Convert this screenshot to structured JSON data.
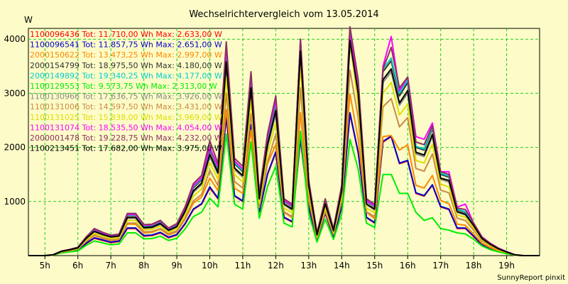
{
  "chart_data": {
    "type": "line",
    "title": "Wechselrichtervergleich vom 13.05.2014",
    "ylabel": "W",
    "xlabel": "",
    "footer": "SunnyReport pinxit",
    "ylim": [
      0,
      4200
    ],
    "xlim": [
      4.5,
      20.0
    ],
    "yticks": [
      1000,
      2000,
      3000,
      4000
    ],
    "xticks": [
      5,
      6,
      7,
      8,
      9,
      10,
      11,
      12,
      13,
      14,
      15,
      16,
      17,
      18,
      19
    ],
    "xtick_labels": [
      "5h",
      "6h",
      "7h",
      "8h",
      "9h",
      "10h",
      "11h",
      "12h",
      "13h",
      "14h",
      "15h",
      "16h",
      "17h",
      "18h",
      "19h"
    ],
    "grid": true,
    "legend_position": "top-left",
    "x": [
      4.5,
      4.75,
      5.0,
      5.25,
      5.5,
      5.75,
      6.0,
      6.25,
      6.5,
      6.75,
      7.0,
      7.25,
      7.5,
      7.75,
      8.0,
      8.25,
      8.5,
      8.75,
      9.0,
      9.25,
      9.5,
      9.75,
      10.0,
      10.25,
      10.5,
      10.75,
      11.0,
      11.25,
      11.5,
      11.75,
      12.0,
      12.25,
      12.5,
      12.75,
      13.0,
      13.25,
      13.5,
      13.75,
      14.0,
      14.25,
      14.5,
      14.75,
      15.0,
      15.25,
      15.5,
      15.75,
      16.0,
      16.25,
      16.5,
      16.75,
      17.0,
      17.25,
      17.5,
      17.75,
      18.0,
      18.25,
      18.5,
      18.75,
      19.0,
      19.25,
      19.5,
      19.75,
      20.0
    ],
    "series": [
      {
        "name": "1100096436 Tot: 11.710,00 Wh Max: 2.633,00 W",
        "color": "#ff0000",
        "values": [
          0,
          0,
          0,
          10,
          60,
          80,
          100,
          220,
          320,
          280,
          240,
          260,
          500,
          500,
          360,
          370,
          420,
          330,
          380,
          580,
          850,
          950,
          1250,
          1050,
          2550,
          1100,
          1000,
          2400,
          800,
          1500,
          1900,
          700,
          620,
          2150,
          900,
          290,
          780,
          340,
          900,
          2620,
          1900,
          700,
          600,
          2100,
          2200,
          1700,
          1750,
          1150,
          1100,
          1300,
          900,
          850,
          500,
          500,
          350,
          200,
          130,
          80,
          40,
          10,
          0,
          0,
          0
        ]
      },
      {
        "name": "1100096541 Tot: 11.857,75 Wh Max: 2.651,00 W",
        "color": "#0000cc",
        "values": [
          0,
          0,
          0,
          10,
          60,
          80,
          100,
          230,
          330,
          290,
          250,
          270,
          510,
          510,
          370,
          380,
          430,
          340,
          390,
          590,
          860,
          960,
          1270,
          1060,
          2570,
          1110,
          1010,
          2420,
          810,
          1510,
          1920,
          710,
          630,
          2170,
          910,
          300,
          790,
          350,
          910,
          2640,
          1910,
          710,
          610,
          2110,
          2210,
          1710,
          1760,
          1160,
          1110,
          1310,
          910,
          860,
          510,
          510,
          360,
          210,
          140,
          90,
          50,
          10,
          0,
          0,
          0
        ]
      },
      {
        "name": "2000150622 Tot: 13.473,25 Wh Max: 2.997,00 W",
        "color": "#ff8800",
        "values": [
          0,
          0,
          0,
          12,
          70,
          90,
          120,
          260,
          370,
          320,
          280,
          300,
          580,
          580,
          420,
          430,
          490,
          380,
          440,
          670,
          970,
          1080,
          1430,
          1200,
          2700,
          1250,
          1150,
          2320,
          900,
          1700,
          2050,
          800,
          700,
          2640,
          1020,
          330,
          880,
          390,
          1000,
          2990,
          2150,
          800,
          680,
          2200,
          2220,
          1950,
          2050,
          1300,
          1250,
          1480,
          1020,
          960,
          580,
          560,
          400,
          230,
          150,
          90,
          50,
          10,
          0,
          0,
          0
        ]
      },
      {
        "name": "2000154799 Tot: 18.975,50 Wh Max: 4.180,00 W",
        "color": "#333333",
        "values": [
          0,
          0,
          0,
          15,
          80,
          110,
          150,
          330,
          470,
          410,
          360,
          380,
          740,
          740,
          540,
          550,
          620,
          490,
          560,
          860,
          1250,
          1400,
          1950,
          1600,
          3750,
          1700,
          1550,
          3250,
          1100,
          2150,
          2800,
          1000,
          900,
          3950,
          1350,
          400,
          1000,
          480,
          1250,
          4150,
          3150,
          1000,
          900,
          3400,
          3600,
          2950,
          3200,
          2000,
          1950,
          2350,
          1500,
          1450,
          850,
          800,
          580,
          330,
          220,
          130,
          70,
          15,
          0,
          0,
          0
        ]
      },
      {
        "name": "2000149892 Tot: 19.340,25 Wh Max: 4.177,00 W",
        "color": "#00cccc",
        "values": [
          0,
          0,
          0,
          15,
          82,
          112,
          152,
          335,
          480,
          415,
          365,
          385,
          750,
          750,
          550,
          560,
          630,
          495,
          570,
          870,
          1270,
          1420,
          1980,
          1620,
          3800,
          1720,
          1570,
          3300,
          1110,
          2170,
          2830,
          1010,
          910,
          3980,
          1360,
          405,
          1010,
          485,
          1260,
          4170,
          3170,
          1010,
          910,
          3450,
          3650,
          3000,
          3250,
          2020,
          1970,
          2380,
          1520,
          1470,
          860,
          810,
          590,
          340,
          225,
          135,
          72,
          15,
          0,
          0,
          0
        ]
      },
      {
        "name": "1100129553 Tot: 9.573,75 Wh Max: 2.313,00 W",
        "color": "#00ee00",
        "values": [
          0,
          0,
          0,
          8,
          50,
          70,
          85,
          190,
          270,
          235,
          200,
          215,
          420,
          420,
          310,
          315,
          360,
          280,
          320,
          490,
          720,
          800,
          1060,
          900,
          2250,
          950,
          860,
          2100,
          690,
          1280,
          1650,
          600,
          530,
          2300,
          780,
          250,
          670,
          300,
          770,
          2150,
          1600,
          600,
          520,
          1500,
          1500,
          1150,
          1150,
          800,
          650,
          700,
          500,
          470,
          420,
          400,
          300,
          180,
          110,
          70,
          35,
          8,
          0,
          0,
          0
        ]
      },
      {
        "name": "1100130966 Tot: 17.636,75 Wh Max: 3.926,00 W",
        "color": "#888888",
        "values": [
          0,
          0,
          0,
          14,
          76,
          105,
          140,
          310,
          440,
          385,
          340,
          355,
          690,
          690,
          505,
          515,
          580,
          460,
          525,
          800,
          1170,
          1310,
          1830,
          1500,
          3500,
          1590,
          1450,
          3050,
          1030,
          2010,
          2620,
          940,
          840,
          3700,
          1260,
          375,
          940,
          450,
          1170,
          3900,
          2950,
          940,
          840,
          3200,
          3400,
          2780,
          3000,
          1880,
          1830,
          2200,
          1410,
          1360,
          800,
          750,
          545,
          310,
          205,
          120,
          65,
          14,
          0,
          0,
          0
        ]
      },
      {
        "name": "1100131006 Tot: 14.597,50 Wh Max: 3.431,00 W",
        "color": "#cc8844",
        "values": [
          0,
          0,
          0,
          12,
          66,
          90,
          120,
          270,
          380,
          330,
          290,
          305,
          600,
          600,
          440,
          445,
          500,
          400,
          455,
          690,
          1010,
          1130,
          1580,
          1290,
          3000,
          1370,
          1250,
          2620,
          890,
          1730,
          2250,
          810,
          720,
          3100,
          1090,
          325,
          810,
          390,
          1010,
          3430,
          2550,
          810,
          720,
          2750,
          2900,
          2380,
          2550,
          1610,
          1560,
          1880,
          1210,
          1160,
          690,
          650,
          470,
          270,
          180,
          105,
          56,
          12,
          0,
          0,
          0
        ]
      },
      {
        "name": "1100131025 Tot: 15.838,00 Wh Max: 3.969,00 W",
        "color": "#dddd00",
        "values": [
          0,
          0,
          0,
          13,
          72,
          98,
          130,
          290,
          410,
          360,
          315,
          330,
          650,
          650,
          475,
          485,
          545,
          430,
          495,
          750,
          1100,
          1230,
          1720,
          1410,
          3300,
          1500,
          1360,
          2880,
          970,
          1890,
          2460,
          880,
          790,
          3500,
          1190,
          355,
          890,
          425,
          1100,
          3960,
          2780,
          880,
          790,
          3000,
          3200,
          2600,
          2800,
          1760,
          1710,
          2060,
          1320,
          1270,
          750,
          710,
          510,
          290,
          190,
          112,
          60,
          13,
          0,
          0,
          0
        ]
      },
      {
        "name": "1100131074 Tot: 18.535,50 Wh Max: 4.054,00 W",
        "color": "#ff00ff",
        "values": [
          0,
          0,
          0,
          15,
          82,
          112,
          152,
          340,
          490,
          420,
          370,
          390,
          760,
          760,
          560,
          570,
          640,
          500,
          580,
          880,
          1290,
          1440,
          2000,
          1640,
          3850,
          1750,
          1600,
          3350,
          1120,
          2200,
          2880,
          1020,
          920,
          4000,
          1380,
          410,
          1020,
          490,
          1280,
          4050,
          3200,
          1020,
          920,
          3500,
          4050,
          3050,
          3300,
          2200,
          2150,
          2450,
          1550,
          1550,
          900,
          950,
          600,
          350,
          230,
          140,
          75,
          15,
          0,
          0,
          0
        ]
      },
      {
        "name": "2000001478 Tot: 19.228,75 Wh Max: 4.232,00 W",
        "color": "#8b3060",
        "values": [
          0,
          0,
          0,
          16,
          84,
          114,
          155,
          345,
          500,
          430,
          378,
          398,
          780,
          780,
          572,
          582,
          652,
          510,
          592,
          900,
          1330,
          1480,
          2120,
          1700,
          3950,
          1800,
          1650,
          3400,
          1150,
          2250,
          2950,
          1050,
          950,
          4000,
          1400,
          420,
          1050,
          500,
          1300,
          4230,
          3250,
          1050,
          950,
          3450,
          3850,
          3100,
          3300,
          2100,
          2050,
          2400,
          1550,
          1500,
          880,
          850,
          600,
          340,
          225,
          135,
          72,
          16,
          0,
          0,
          0
        ]
      },
      {
        "name": "1100213451 Tot: 17.682,00 Wh Max: 3.975,00 W",
        "color": "#000000",
        "values": [
          0,
          0,
          0,
          14,
          77,
          106,
          142,
          315,
          450,
          390,
          345,
          362,
          705,
          705,
          515,
          525,
          592,
          468,
          535,
          815,
          1195,
          1340,
          1870,
          1530,
          3580,
          1620,
          1480,
          3100,
          1050,
          2050,
          2680,
          955,
          860,
          3780,
          1290,
          382,
          955,
          458,
          1190,
          3975,
          3000,
          955,
          860,
          3250,
          3450,
          2820,
          3050,
          1910,
          1860,
          2240,
          1430,
          1390,
          815,
          765,
          555,
          315,
          210,
          125,
          66,
          14,
          0,
          0,
          0
        ]
      }
    ]
  }
}
